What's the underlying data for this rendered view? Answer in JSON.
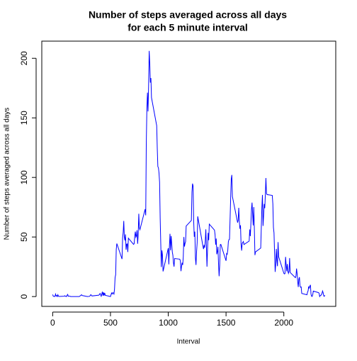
{
  "chart_data": {
    "type": "line",
    "title": [
      "Number of steps averaged across all days",
      "for each 5 minute interval"
    ],
    "xlabel": "Interval",
    "ylabel": "Number of steps averaged across all days",
    "x": [
      0,
      5,
      10,
      15,
      20,
      25,
      30,
      35,
      40,
      45,
      50,
      55,
      100,
      105,
      110,
      115,
      120,
      125,
      130,
      135,
      140,
      145,
      150,
      155,
      200,
      230,
      250,
      255,
      300,
      320,
      330,
      340,
      400,
      410,
      420,
      430,
      435,
      440,
      445,
      450,
      455,
      500,
      505,
      510,
      515,
      520,
      525,
      530,
      535,
      540,
      545,
      550,
      555,
      600,
      605,
      610,
      615,
      620,
      625,
      630,
      635,
      640,
      645,
      650,
      655,
      700,
      705,
      710,
      715,
      720,
      725,
      730,
      735,
      740,
      745,
      750,
      755,
      800,
      805,
      810,
      815,
      820,
      825,
      830,
      835,
      840,
      845,
      850,
      855,
      900,
      905,
      910,
      915,
      920,
      925,
      930,
      935,
      940,
      945,
      950,
      955,
      1000,
      1005,
      1010,
      1015,
      1020,
      1025,
      1030,
      1035,
      1040,
      1045,
      1050,
      1055,
      1100,
      1105,
      1110,
      1115,
      1120,
      1125,
      1130,
      1135,
      1140,
      1145,
      1150,
      1155,
      1200,
      1205,
      1210,
      1215,
      1220,
      1225,
      1230,
      1235,
      1240,
      1245,
      1250,
      1255,
      1300,
      1305,
      1310,
      1315,
      1320,
      1325,
      1330,
      1335,
      1340,
      1345,
      1350,
      1355,
      1400,
      1405,
      1410,
      1415,
      1420,
      1425,
      1430,
      1435,
      1440,
      1445,
      1450,
      1455,
      1500,
      1505,
      1510,
      1515,
      1520,
      1525,
      1530,
      1535,
      1540,
      1545,
      1550,
      1555,
      1600,
      1605,
      1610,
      1615,
      1620,
      1625,
      1630,
      1635,
      1640,
      1645,
      1650,
      1655,
      1700,
      1705,
      1710,
      1715,
      1720,
      1725,
      1730,
      1735,
      1740,
      1745,
      1750,
      1755,
      1800,
      1805,
      1810,
      1815,
      1820,
      1825,
      1830,
      1835,
      1840,
      1845,
      1850,
      1855,
      1900,
      1905,
      1910,
      1915,
      1920,
      1925,
      1930,
      1935,
      1940,
      1945,
      1950,
      1955,
      2000,
      2005,
      2010,
      2015,
      2020,
      2025,
      2030,
      2035,
      2040,
      2045,
      2050,
      2055,
      2100,
      2105,
      2110,
      2115,
      2120,
      2125,
      2130,
      2135,
      2140,
      2145,
      2150,
      2155,
      2200,
      2205,
      2210,
      2215,
      2220,
      2225,
      2230,
      2235,
      2240,
      2245,
      2250,
      2255,
      2300,
      2305,
      2310,
      2315,
      2320,
      2325,
      2330,
      2335,
      2340,
      2345,
      2350,
      2355
    ],
    "series": [
      {
        "color": "#0000ff",
        "values": [
          1.7,
          0.3,
          0.1,
          0.2,
          0.1,
          2.1,
          0.5,
          0.9,
          0,
          1.5,
          0.3,
          0.1,
          0.3,
          0.7,
          0.2,
          0.3,
          0,
          1.1,
          1.8,
          0.2,
          0.2,
          0.4,
          0.3,
          0,
          0,
          0,
          1.5,
          0.9,
          0,
          0.2,
          1.6,
          0.5,
          1.2,
          2.6,
          0.3,
          4.1,
          0.7,
          3.5,
          0.8,
          3.1,
          1.1,
          0,
          1.6,
          3,
          2.2,
          3.3,
          3,
          2.1,
          6.1,
          16,
          18.3,
          39.5,
          44.5,
          31.5,
          49.3,
          53.8,
          63.5,
          50,
          47.1,
          52.2,
          39.3,
          44,
          44.2,
          37.4,
          49,
          43.8,
          44.4,
          50.5,
          54.5,
          49.9,
          51,
          55.7,
          44.3,
          52.3,
          69.5,
          57.8,
          56.2,
          73.4,
          68.2,
          129.4,
          157.5,
          171.2,
          155.4,
          177.3,
          206.2,
          195.9,
          179.6,
          183.4,
          167,
          143.5,
          124,
          109.1,
          108.1,
          103.7,
          95.97,
          66.2,
          45.2,
          24.8,
          38.8,
          34.98,
          21.1,
          40.6,
          27,
          42.4,
          52.7,
          38.9,
          50.8,
          44.3,
          37.4,
          34.7,
          28.3,
          25.1,
          31.9,
          31.4,
          29.7,
          21.3,
          25.5,
          28.4,
          26.5,
          33.4,
          50,
          42,
          44.6,
          46,
          59.2,
          63.9,
          87.7,
          94.8,
          92.8,
          63.4,
          50.2,
          54.5,
          32.4,
          26.5,
          37.7,
          45.1,
          67.3,
          42.3,
          39.9,
          43.3,
          40.98,
          46.2,
          56.4,
          42.8,
          25.1,
          39.97,
          53.5,
          47.3,
          60.8,
          55.8,
          51.96,
          43.6,
          48.7,
          35.5,
          37.5,
          41.8,
          27.5,
          17.1,
          26.1,
          43.6,
          43.8,
          30,
          36.1,
          35.5,
          38.8,
          45.96,
          47.8,
          48.1,
          65.3,
          82.9,
          98.7,
          102.1,
          83.96,
          62.1,
          64.1,
          74.5,
          63.2,
          56.9,
          59.8,
          43.9,
          38.6,
          44.7,
          45.5,
          46.2,
          43.7,
          46.6,
          56.3,
          50.7,
          61.2,
          73,
          78.9,
          68.9,
          59.7,
          75.1,
          56.5,
          34.8,
          37.5,
          40.7,
          58,
          74.7,
          85.3,
          59.3,
          67.8,
          77.7,
          74.2,
          85.3,
          99.5,
          86.6,
          85.6,
          84.9,
          77.8,
          58,
          53.4,
          36.3,
          20.7,
          27.4,
          40,
          30.2,
          25.5,
          45.7,
          33.5,
          19.6,
          19,
          19.3,
          33.3,
          26.8,
          21.2,
          27.3,
          21.3,
          19.5,
          21.3,
          32.3,
          20.2,
          15.9,
          17.2,
          23.5,
          19.2,
          12.5,
          8,
          14.7,
          16.3,
          8.7,
          7.8,
          8.1,
          2.6,
          1.5,
          3.7,
          4.8,
          8.5,
          7.1,
          8.7,
          9.8,
          2.2,
          0.3,
          0.1,
          1.6,
          4.6,
          3.3,
          2.8,
          0,
          0.8,
          0.96,
          1.6,
          2.6,
          4.7,
          3.3,
          0.6,
          0.2,
          1.1
        ]
      }
    ],
    "xlim": [
      -94.2,
      2449.2
    ],
    "xticks": [
      0,
      500,
      1000,
      1500,
      2000
    ],
    "ylim": [
      -8.25,
      214.42
    ],
    "yticks": [
      0,
      50,
      100,
      150,
      200
    ]
  }
}
